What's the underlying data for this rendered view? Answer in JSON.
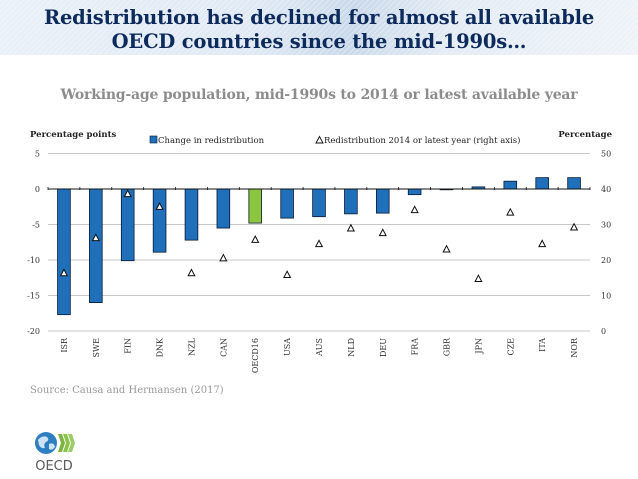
{
  "slide": {
    "title_line1": "Redistribution has declined for almost all available",
    "title_line2": "OECD countries since the mid-1990s…",
    "subtitle": "Working-age population, mid-1990s to 2014 or latest available year",
    "source": "Source: Causa and Hermansen (2017)",
    "logo_text": "OECD"
  },
  "colors": {
    "bar": "#1f6fba",
    "bar_highlight": "#8cc63f",
    "bar_edge": "#0b1a33",
    "title": "#0d2a5c"
  },
  "chart_data": {
    "type": "bar",
    "title": "Working-age population, mid-1990s to 2014 or latest available year",
    "ylabel": "Percentage points",
    "ylabel_right": "Percentage",
    "categories": [
      "ISR",
      "SWE",
      "FIN",
      "DNK",
      "NZL",
      "CAN",
      "OECD16",
      "USA",
      "AUS",
      "NLD",
      "DEU",
      "FRA",
      "GBR",
      "JPN",
      "CZE",
      "ITA",
      "NOR"
    ],
    "highlight_category": "OECD16",
    "ylim": [
      -20,
      5
    ],
    "yticks": [
      5,
      0,
      -5,
      -10,
      -15,
      -20
    ],
    "ylim_right": [
      0,
      50
    ],
    "yticks_right": [
      50,
      40,
      30,
      20,
      10,
      0
    ],
    "grid": true,
    "legend_position": "top",
    "series": [
      {
        "name": "Change in redistribution",
        "type": "bar",
        "axis": "left",
        "values": [
          -17.7,
          -16.0,
          -10.1,
          -8.9,
          -7.2,
          -5.5,
          -4.8,
          -4.1,
          -3.9,
          -3.5,
          -3.4,
          -0.8,
          0.0,
          0.3,
          1.1,
          1.6,
          1.6
        ]
      },
      {
        "name": "Redistribution 2014 or latest year (right axis)",
        "type": "scatter",
        "marker": "triangle",
        "axis": "right",
        "values": [
          16.4,
          26.3,
          38.7,
          35.1,
          16.4,
          20.6,
          25.8,
          15.9,
          24.6,
          29.0,
          27.7,
          34.2,
          23.1,
          14.8,
          33.5,
          24.6,
          29.3
        ]
      }
    ]
  }
}
